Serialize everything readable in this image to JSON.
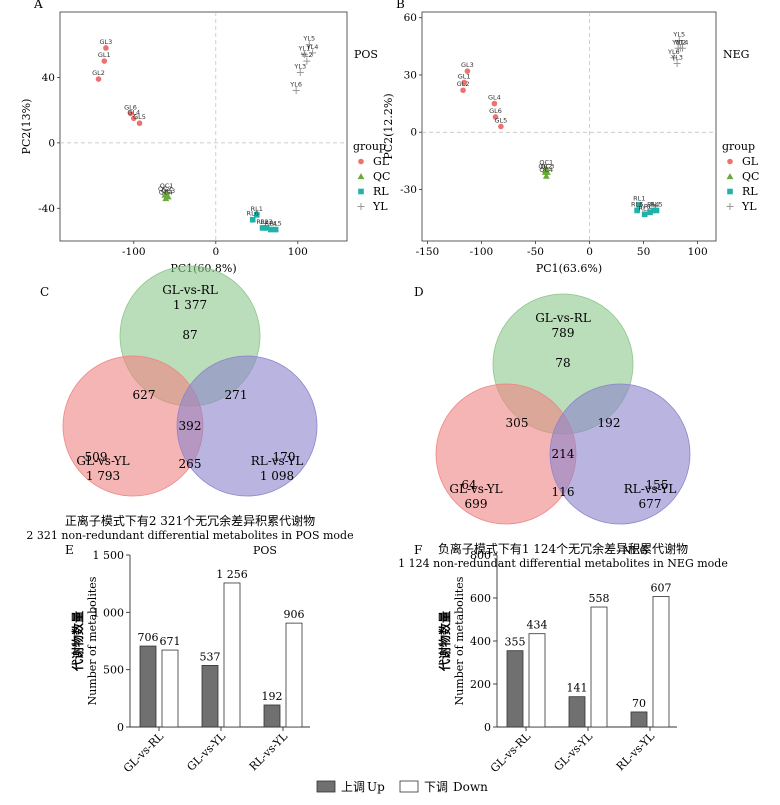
{
  "chart_data": [
    {
      "type": "scatter",
      "panel_letter": "A",
      "mode_label": "POS",
      "xlabel": "PC1(60.8%)",
      "ylabel": "PC2(13%)",
      "xlim": [
        -190,
        160
      ],
      "ylim": [
        -60,
        80
      ],
      "xticks": [
        -100,
        0,
        100
      ],
      "yticks": [
        -40,
        0,
        40
      ],
      "legend": {
        "title": "group",
        "items": [
          "GL",
          "QC",
          "RL",
          "YL"
        ]
      },
      "points": [
        {
          "label": "GL3",
          "group": "GL",
          "x": -134,
          "y": 58
        },
        {
          "label": "GL1",
          "group": "GL",
          "x": -136,
          "y": 50
        },
        {
          "label": "GL2",
          "group": "GL",
          "x": -143,
          "y": 39
        },
        {
          "label": "GL6",
          "group": "GL",
          "x": -104,
          "y": 18
        },
        {
          "label": "GL4",
          "group": "GL",
          "x": -100,
          "y": 15
        },
        {
          "label": "GL5",
          "group": "GL",
          "x": -93,
          "y": 12
        },
        {
          "label": "QC1",
          "group": "QC",
          "x": -60,
          "y": -30
        },
        {
          "label": "QC2",
          "group": "QC",
          "x": -62,
          "y": -32
        },
        {
          "label": "QC3",
          "group": "QC",
          "x": -58,
          "y": -33
        },
        {
          "label": "QC4",
          "group": "QC",
          "x": -61,
          "y": -34
        },
        {
          "label": "RL1",
          "group": "RL",
          "x": 50,
          "y": -44
        },
        {
          "label": "RL6",
          "group": "RL",
          "x": 45,
          "y": -47
        },
        {
          "label": "RL2",
          "group": "RL",
          "x": 57,
          "y": -52
        },
        {
          "label": "RL3",
          "group": "RL",
          "x": 62,
          "y": -52
        },
        {
          "label": "RL4",
          "group": "RL",
          "x": 67,
          "y": -53
        },
        {
          "label": "RL5",
          "group": "RL",
          "x": 73,
          "y": -53
        },
        {
          "label": "YL5",
          "group": "YL",
          "x": 114,
          "y": 60
        },
        {
          "label": "YL1",
          "group": "YL",
          "x": 108,
          "y": 54
        },
        {
          "label": "YL4",
          "group": "YL",
          "x": 118,
          "y": 55
        },
        {
          "label": "YL2",
          "group": "YL",
          "x": 111,
          "y": 50
        },
        {
          "label": "YL3",
          "group": "YL",
          "x": 103,
          "y": 43
        },
        {
          "label": "YL6",
          "group": "YL",
          "x": 98,
          "y": 32
        }
      ]
    },
    {
      "type": "scatter",
      "panel_letter": "B",
      "mode_label": "NEG",
      "xlabel": "PC1(63.6%)",
      "ylabel": "PC2(12.2%)",
      "xlim": [
        -155,
        117
      ],
      "ylim": [
        -57,
        63
      ],
      "xticks": [
        -150,
        -100,
        -50,
        0,
        50,
        100
      ],
      "yticks": [
        -30,
        0,
        30,
        60
      ],
      "legend": {
        "title": "group",
        "items": [
          "GL",
          "QC",
          "RL",
          "YL"
        ]
      },
      "points": [
        {
          "label": "GL3",
          "group": "GL",
          "x": -113,
          "y": 32
        },
        {
          "label": "GL1",
          "group": "GL",
          "x": -116,
          "y": 26
        },
        {
          "label": "GL2",
          "group": "GL",
          "x": -117,
          "y": 22
        },
        {
          "label": "GL4",
          "group": "GL",
          "x": -88,
          "y": 15
        },
        {
          "label": "GL6",
          "group": "GL",
          "x": -87,
          "y": 8
        },
        {
          "label": "GL5",
          "group": "GL",
          "x": -82,
          "y": 3
        },
        {
          "label": "QC1",
          "group": "QC",
          "x": -40,
          "y": -19
        },
        {
          "label": "QC2",
          "group": "QC",
          "x": -41,
          "y": -21
        },
        {
          "label": "QC3",
          "group": "QC",
          "x": -39,
          "y": -21
        },
        {
          "label": "QC4",
          "group": "QC",
          "x": -40,
          "y": -23
        },
        {
          "label": "RL1",
          "group": "RL",
          "x": 46,
          "y": -38
        },
        {
          "label": "RL6",
          "group": "RL",
          "x": 44,
          "y": -41
        },
        {
          "label": "RL2",
          "group": "RL",
          "x": 51,
          "y": -43
        },
        {
          "label": "RL3",
          "group": "RL",
          "x": 56,
          "y": -42
        },
        {
          "label": "RL4",
          "group": "RL",
          "x": 59,
          "y": -41
        },
        {
          "label": "RL5",
          "group": "RL",
          "x": 62,
          "y": -41
        },
        {
          "label": "YL5",
          "group": "YL",
          "x": 83,
          "y": 48
        },
        {
          "label": "YL1",
          "group": "YL",
          "x": 82,
          "y": 44
        },
        {
          "label": "YL4",
          "group": "YL",
          "x": 86,
          "y": 44
        },
        {
          "label": "YL6",
          "group": "YL",
          "x": 78,
          "y": 39
        },
        {
          "label": "YL3",
          "group": "YL",
          "x": 81,
          "y": 36
        },
        {
          "label": "YL2",
          "group": "YL",
          "x": 84,
          "y": 44
        }
      ]
    },
    {
      "type": "venn",
      "panel_letter": "C",
      "sets": [
        {
          "name": "GL-vs-RL",
          "total": "1 377",
          "color": "#8cc68c"
        },
        {
          "name": "GL-vs-YL",
          "total": "1 793",
          "color": "#f08484"
        },
        {
          "name": "RL-vs-YL",
          "total": "1 098",
          "color": "#8c84cc"
        }
      ],
      "regions": {
        "a_only": 87,
        "b_only": 509,
        "c_only": 170,
        "ab": 627,
        "ac": 271,
        "bc": 265,
        "abc": 392
      },
      "caption_cn": "正离子模式下有2 321个无冗余差异积累代谢物",
      "caption_en": "2 321 non-redundant differential metabolites in POS mode"
    },
    {
      "type": "venn",
      "panel_letter": "D",
      "sets": [
        {
          "name": "GL-vs-RL",
          "total": "789",
          "color": "#8cc68c"
        },
        {
          "name": "GL-vs-YL",
          "total": "699",
          "color": "#f08484"
        },
        {
          "name": "RL-vs-YL",
          "total": "677",
          "color": "#8c84cc"
        }
      ],
      "regions": {
        "a_only": 78,
        "b_only": 64,
        "c_only": 155,
        "ab": 305,
        "ac": 192,
        "bc": 116,
        "abc": 214
      },
      "caption_cn": "负离子模式下有1 124个无冗余差异积累代谢物",
      "caption_en": "1 124 non-redundant differential metabolites in NEG mode"
    },
    {
      "type": "bar",
      "panel_letter": "E",
      "mode_label": "POS",
      "ylabel_cn": "代谢物数量",
      "ylabel_en": "Number of metabolites",
      "ylim": [
        0,
        1500
      ],
      "yticks": [
        0,
        500,
        1000,
        1500
      ],
      "ytick_labels": [
        "0",
        "500",
        "1 000",
        "1 500"
      ],
      "categories": [
        "GL-vs-RL",
        "GL-vs-YL",
        "RL-vs-YL"
      ],
      "series": [
        {
          "name": "Up",
          "values": [
            706,
            537,
            192
          ]
        },
        {
          "name": "Down",
          "values": [
            671,
            1256,
            906
          ]
        }
      ],
      "value_labels": {
        "Up": [
          "706",
          "537",
          "192"
        ],
        "Down": [
          "671",
          "1 256",
          "906"
        ]
      }
    },
    {
      "type": "bar",
      "panel_letter": "F",
      "mode_label": "NEG",
      "ylabel_cn": "代谢物数量",
      "ylabel_en": "Number of metabolites",
      "ylim": [
        0,
        800
      ],
      "yticks": [
        0,
        200,
        400,
        600,
        800
      ],
      "ytick_labels": [
        "0",
        "200",
        "400",
        "600",
        "800"
      ],
      "categories": [
        "GL-vs-RL",
        "GL-vs-YL",
        "RL-vs-YL"
      ],
      "series": [
        {
          "name": "Up",
          "values": [
            355,
            141,
            70
          ]
        },
        {
          "name": "Down",
          "values": [
            434,
            558,
            607
          ]
        }
      ],
      "value_labels": {
        "Up": [
          "355",
          "141",
          "70"
        ],
        "Down": [
          "434",
          "558",
          "607"
        ]
      }
    }
  ],
  "bar_legend": {
    "up_cn": "上调",
    "up_en": "Up",
    "down_cn": "下调",
    "down_en": "Down",
    "up_color": "#707070",
    "down_color": "#ffffff"
  },
  "group_colors": {
    "GL": "#f07070",
    "QC": "#6aaa3a",
    "RL": "#20b2aa",
    "YL": "#999999"
  }
}
